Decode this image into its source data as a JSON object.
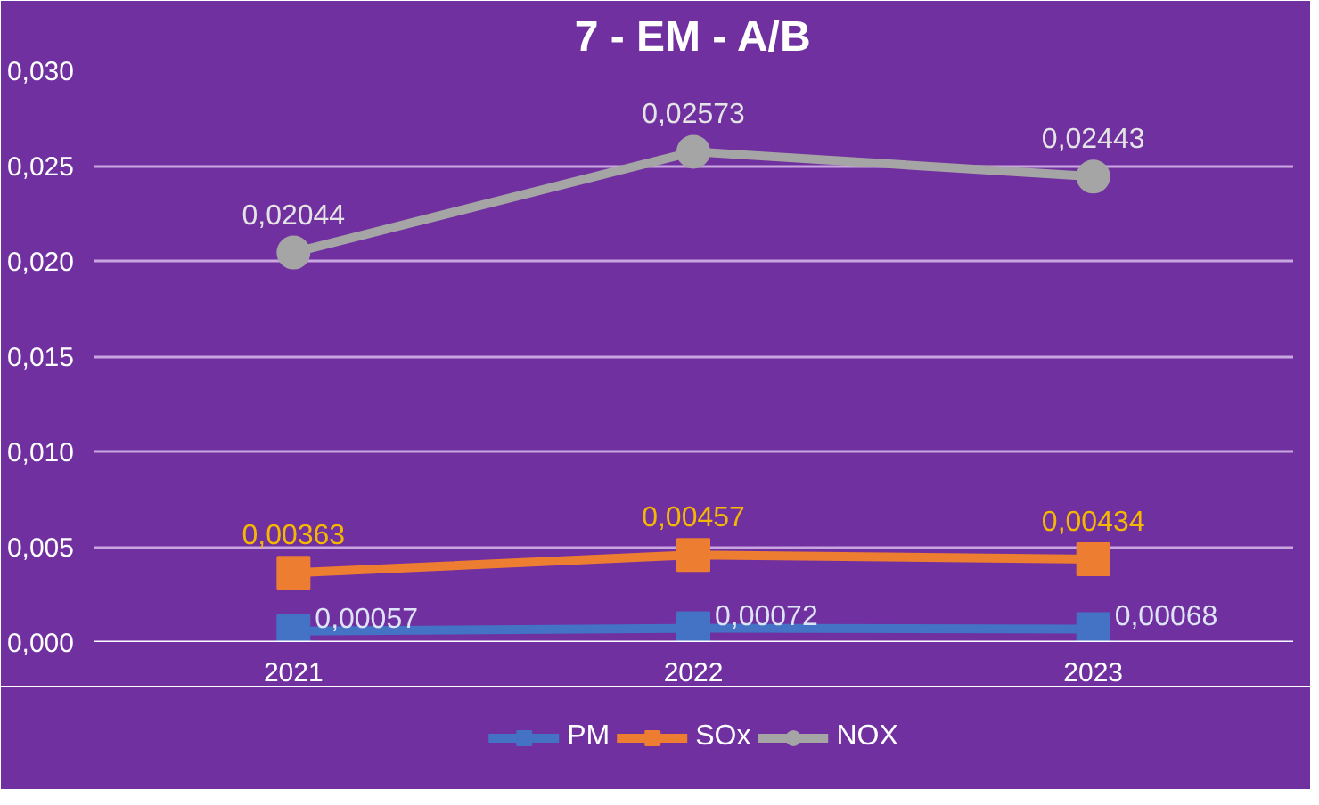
{
  "chart_data": {
    "type": "line",
    "title": "7 - EM - A/B",
    "categories": [
      "2021",
      "2022",
      "2023"
    ],
    "series": [
      {
        "name": "PM",
        "color": "#4472c4",
        "marker": "square",
        "values": [
          0.00057,
          0.00072,
          0.00068
        ],
        "value_labels": [
          "0,00057",
          "0,00072",
          "0,00068"
        ]
      },
      {
        "name": "SOx",
        "color": "#ed7d31",
        "marker": "square",
        "values": [
          0.00363,
          0.00457,
          0.00434
        ],
        "value_labels": [
          "0,00363",
          "0,00457",
          "0,00434"
        ]
      },
      {
        "name": "NOX",
        "color": "#a5a5a5",
        "marker": "circle",
        "values": [
          0.02044,
          0.02573,
          0.02443
        ],
        "value_labels": [
          "0,02044",
          "0,02573",
          "0,02443"
        ]
      }
    ],
    "ylim": [
      0,
      0.03
    ],
    "yticks": [
      {
        "value": 0,
        "label": "0,000"
      },
      {
        "value": 0.005,
        "label": "0,005"
      },
      {
        "value": 0.01,
        "label": "0,010"
      },
      {
        "value": 0.015,
        "label": "0,015"
      },
      {
        "value": 0.02,
        "label": "0,020"
      },
      {
        "value": 0.025,
        "label": "0,025"
      },
      {
        "value": 0.03,
        "label": "0,030"
      }
    ],
    "grid": "y",
    "legend": "bottom",
    "line_style": "solid"
  }
}
